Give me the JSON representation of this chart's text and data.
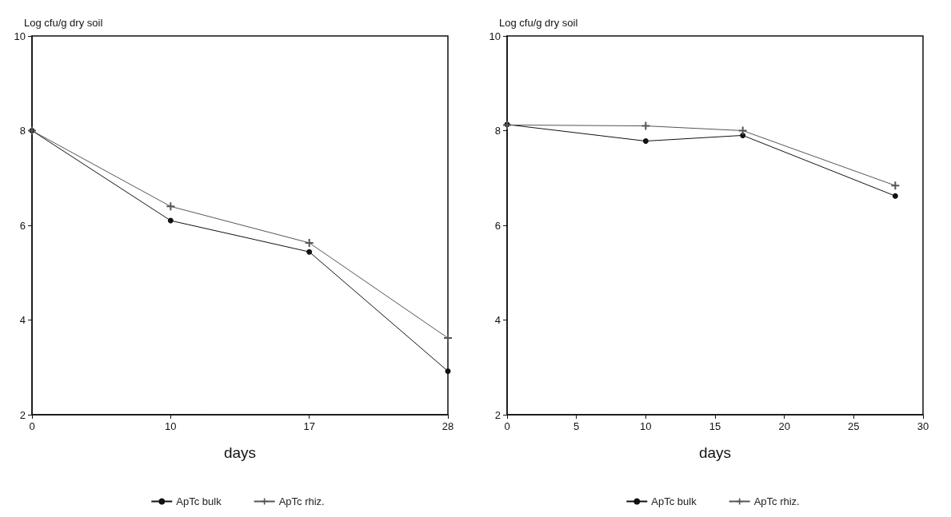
{
  "chart_data": [
    {
      "type": "line",
      "ylabel": "Log cfu/g dry soil",
      "xlabel": "days",
      "categories": [
        "0",
        "10",
        "17",
        "28"
      ],
      "ylim": [
        2,
        10
      ],
      "yticks": [
        2,
        4,
        6,
        8,
        10
      ],
      "grid": false,
      "legend": "bottom",
      "line_style": "solid",
      "series": [
        {
          "name": "ApTc bulk",
          "color": "#111111",
          "marker": "circle",
          "values": [
            8,
            6.1,
            5.44,
            2.92
          ]
        },
        {
          "name": "ApTc rhiz.",
          "color": "#555555",
          "marker": "cross",
          "values": [
            8,
            6.4,
            5.63,
            3.62
          ]
        }
      ]
    },
    {
      "type": "line",
      "ylabel": "Log cfu/g dry soil",
      "xlabel": "days",
      "x": [
        0,
        10,
        17,
        28
      ],
      "xlim": [
        0,
        30
      ],
      "xticks": [
        0,
        5,
        10,
        15,
        20,
        25,
        30
      ],
      "ylim": [
        2,
        10
      ],
      "yticks": [
        2,
        4,
        6,
        8,
        10
      ],
      "grid": false,
      "legend": "bottom",
      "line_style": "solid",
      "series": [
        {
          "name": "ApTc bulk",
          "color": "#111111",
          "marker": "circle",
          "values": [
            8.13,
            7.78,
            7.9,
            6.62
          ]
        },
        {
          "name": "ApTc rhiz.",
          "color": "#555555",
          "marker": "cross",
          "values": [
            8.12,
            8.1,
            8.0,
            6.84
          ]
        }
      ]
    }
  ]
}
